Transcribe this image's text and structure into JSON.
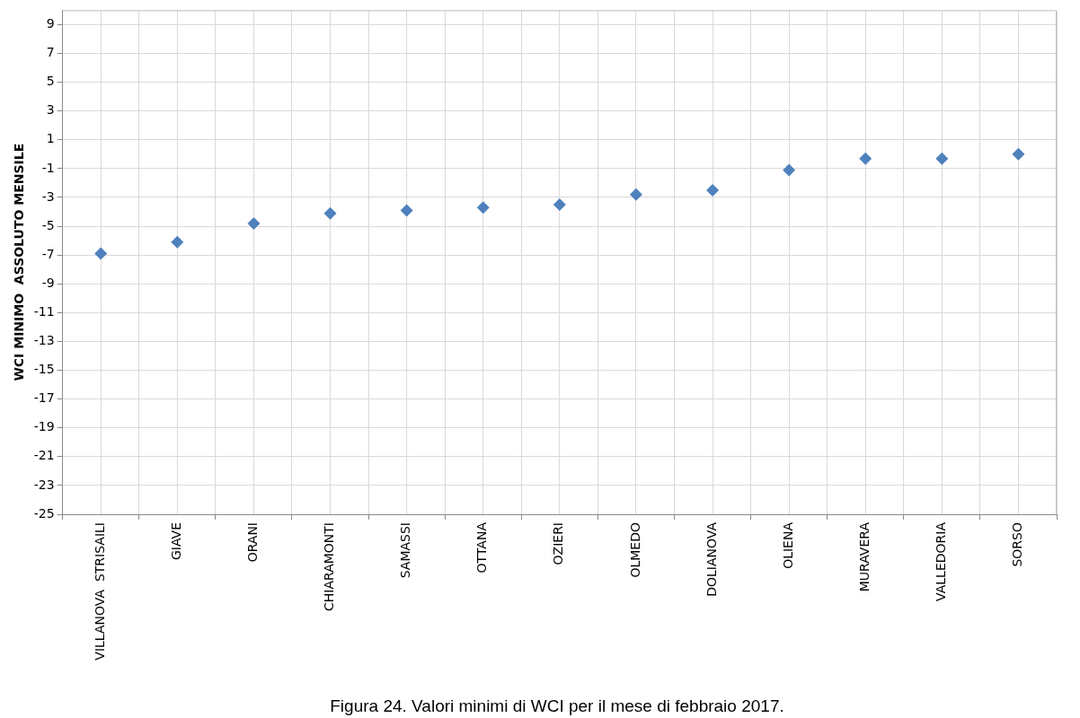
{
  "chart_data": {
    "type": "scatter",
    "ylabel": "WCI MINIMO  ASSOLUTO MENSILE",
    "categories": [
      "VILLANOVA  STRISAILI",
      "GIAVE",
      "ORANI",
      "CHIARAMONTI",
      "SAMASSI",
      "OTTANA",
      "OZIERI",
      "OLMEDO",
      "DOLIANOVA",
      "OLIENA",
      "MURAVERA",
      "VALLEDORIA",
      "SORSO"
    ],
    "series": [
      {
        "color": "#4f81bd",
        "values": [
          -6.9,
          -6.1,
          -4.8,
          -4.1,
          -3.9,
          -3.7,
          -3.5,
          -2.8,
          -2.5,
          -1.1,
          -0.3,
          -0.3,
          0.0
        ]
      }
    ],
    "ylim": [
      -25,
      10
    ],
    "yticks": [
      -25,
      -23,
      -21,
      -19,
      -17,
      -15,
      -13,
      -11,
      -9,
      -7,
      -5,
      -3,
      -1,
      1,
      3,
      5,
      7,
      9
    ],
    "grid": true,
    "legend": false,
    "marker": "diamond",
    "annotations": [
      "Figura 24. Valori minimi di WCI per il mese di febbraio 2017."
    ]
  }
}
